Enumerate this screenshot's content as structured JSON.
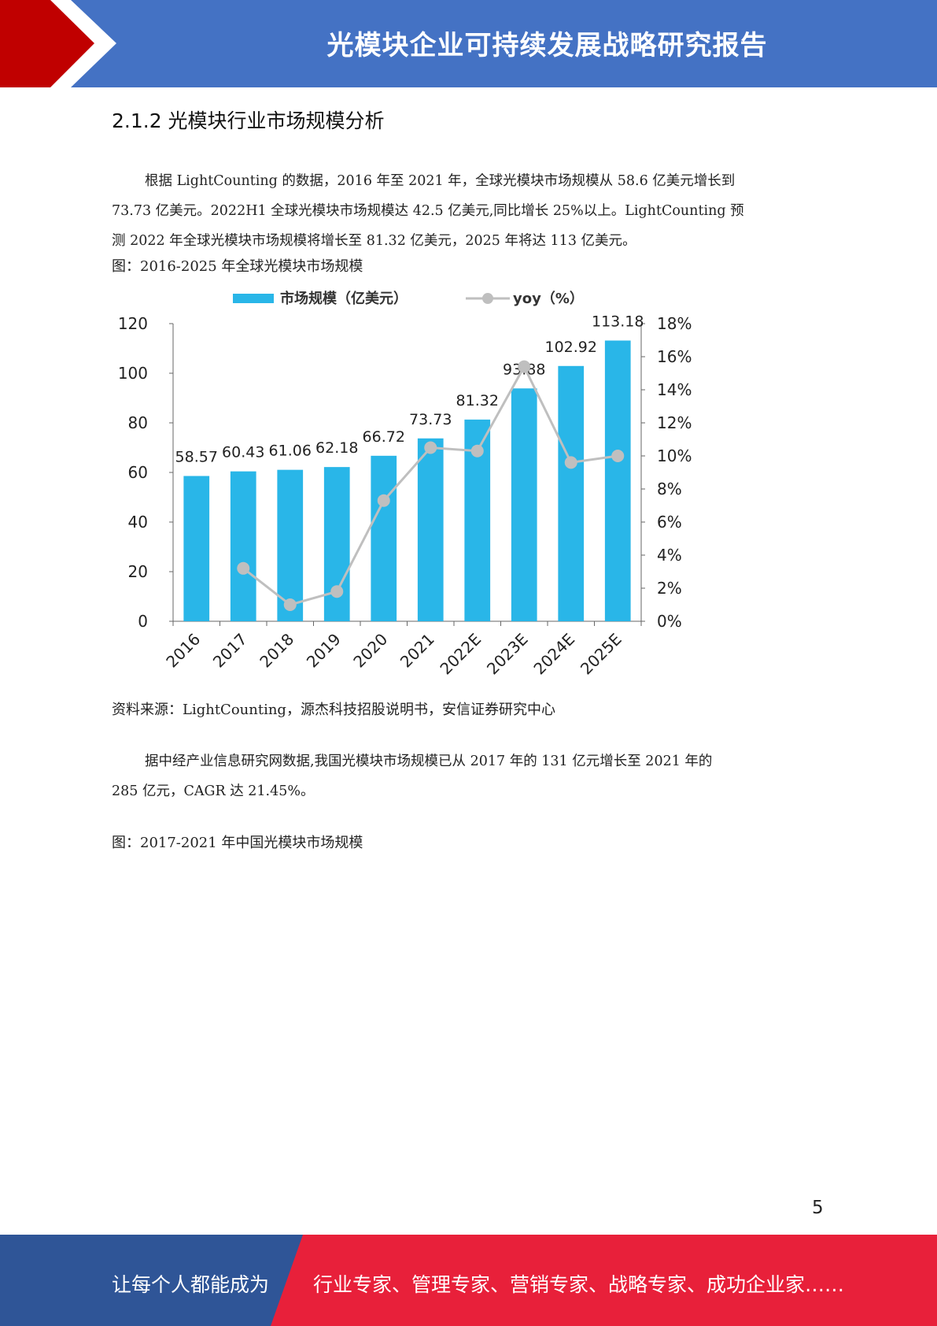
{
  "header": {
    "title": "光模块企业可持续发展战略研究报告"
  },
  "section_heading": "2.1.2 光模块行业市场规模分析",
  "paragraph1": {
    "line1": "根据 LightCounting 的数据，2016 年至 2021 年，全球光模块市场规模从 58.6 亿美元增长到",
    "line2": "73.73 亿美元。2022H1 全球光模块市场规模达 42.5 亿美元,同比增长 25%以上。LightCounting 预",
    "line3": "测 2022 年全球光模块市场规模将增长至 81.32 亿美元，2025 年将达 113 亿美元。"
  },
  "figure1_caption": "图：2016-2025 年全球光模块市场规模",
  "source": "资料来源：LightCounting，源杰科技招股说明书，安信证券研究中心",
  "paragraph2": {
    "line1": "据中经产业信息研究网数据,我国光模块市场规模已从 2017 年的 131 亿元增长至 2021 年的",
    "line2": "285 亿元，CAGR 达 21.45%。"
  },
  "figure2_caption": "图：2017-2021 年中国光模块市场规模",
  "page_number": "5",
  "footer": {
    "left": "让每个人都能成为",
    "right": "行业专家、管理专家、营销专家、战略专家、成功企业家……"
  },
  "colors": {
    "header_blue": "#4472c4",
    "header_red": "#c00000",
    "footer_blue": "#2f5597",
    "footer_red": "#e8203a",
    "bar": "#29b6e8",
    "line": "#bfbfbf"
  },
  "chart_data": {
    "type": "bar",
    "categories": [
      "2016",
      "2017",
      "2018",
      "2019",
      "2020",
      "2021",
      "2022E",
      "2023E",
      "2024E",
      "2025E"
    ],
    "series": [
      {
        "name": "市场规模（亿美元）",
        "type": "bar",
        "axis": "left",
        "values": [
          58.57,
          60.43,
          61.06,
          62.18,
          66.72,
          73.73,
          81.32,
          93.88,
          102.92,
          113.18
        ]
      },
      {
        "name": "yoy（%）",
        "type": "line",
        "axis": "right",
        "values": [
          null,
          3.2,
          1.0,
          1.8,
          7.3,
          10.5,
          10.3,
          15.4,
          9.6,
          10.0
        ]
      }
    ],
    "data_labels": [
      "58.57",
      "60.43",
      "61.06",
      "62.18",
      "66.72",
      "73.73",
      "81.32",
      "93.88",
      "102.92",
      "113.18"
    ],
    "ylim_left": [
      0,
      120
    ],
    "yticks_left": [
      "0",
      "20",
      "40",
      "60",
      "80",
      "100",
      "120"
    ],
    "ylim_right": [
      0,
      18
    ],
    "yticks_right": [
      "0%",
      "2%",
      "4%",
      "6%",
      "8%",
      "10%",
      "12%",
      "14%",
      "16%",
      "18%"
    ],
    "legend_position": "top",
    "grid": false
  }
}
